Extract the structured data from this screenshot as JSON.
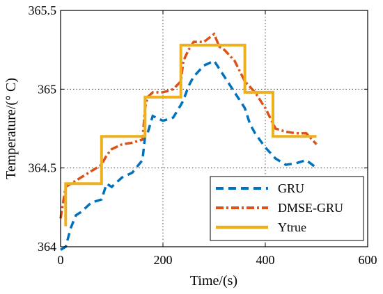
{
  "chart_data": {
    "type": "line",
    "title": "",
    "xlabel": "Time/(s)",
    "ylabel": "Temperature/(° C)",
    "xlim": [
      0,
      600
    ],
    "ylim": [
      364,
      365.5
    ],
    "xticks": [
      "0",
      "200",
      "400",
      "600"
    ],
    "yticks": [
      "364",
      "364.5",
      "365",
      "365.5"
    ],
    "grid": true,
    "legend_position": "lower-right",
    "series": [
      {
        "name": "GRU",
        "color": "#0072BD",
        "style": "dashed",
        "x": [
          0,
          10,
          20,
          30,
          40,
          60,
          80,
          90,
          100,
          120,
          140,
          160,
          165,
          170,
          180,
          200,
          220,
          235,
          240,
          250,
          260,
          280,
          300,
          310,
          320,
          340,
          360,
          370,
          380,
          400,
          420,
          440,
          460,
          480,
          500
        ],
        "y": [
          363.98,
          364.0,
          364.12,
          364.2,
          364.22,
          364.28,
          364.3,
          364.4,
          364.38,
          364.44,
          364.47,
          364.55,
          364.7,
          364.72,
          364.83,
          364.8,
          364.82,
          364.9,
          364.93,
          365.02,
          365.08,
          365.15,
          365.18,
          365.13,
          365.08,
          364.98,
          364.88,
          364.78,
          364.72,
          364.63,
          364.56,
          364.52,
          364.53,
          364.55,
          364.5
        ]
      },
      {
        "name": "DMSE-GRU",
        "color": "#D95319",
        "style": "dashdot",
        "x": [
          0,
          10,
          20,
          40,
          60,
          80,
          90,
          100,
          120,
          140,
          160,
          165,
          170,
          180,
          200,
          220,
          235,
          240,
          250,
          260,
          280,
          300,
          310,
          320,
          340,
          360,
          380,
          400,
          420,
          440,
          460,
          480,
          500
        ],
        "y": [
          364.18,
          364.38,
          364.4,
          364.44,
          364.48,
          364.52,
          364.58,
          364.62,
          364.65,
          364.66,
          364.68,
          364.88,
          364.95,
          364.98,
          364.98,
          365.0,
          365.05,
          365.18,
          365.25,
          365.3,
          365.3,
          365.35,
          365.27,
          365.25,
          365.18,
          365.05,
          364.98,
          364.88,
          364.75,
          364.73,
          364.72,
          364.72,
          364.65
        ]
      },
      {
        "name": "Ytrue",
        "color": "#EDB120",
        "style": "solid",
        "x": [
          10,
          10,
          80,
          80,
          165,
          165,
          235,
          235,
          360,
          360,
          415,
          415,
          500
        ],
        "y": [
          364.13,
          364.4,
          364.4,
          364.7,
          364.7,
          364.95,
          364.95,
          365.28,
          365.28,
          364.98,
          364.98,
          364.7,
          364.7
        ]
      }
    ]
  }
}
